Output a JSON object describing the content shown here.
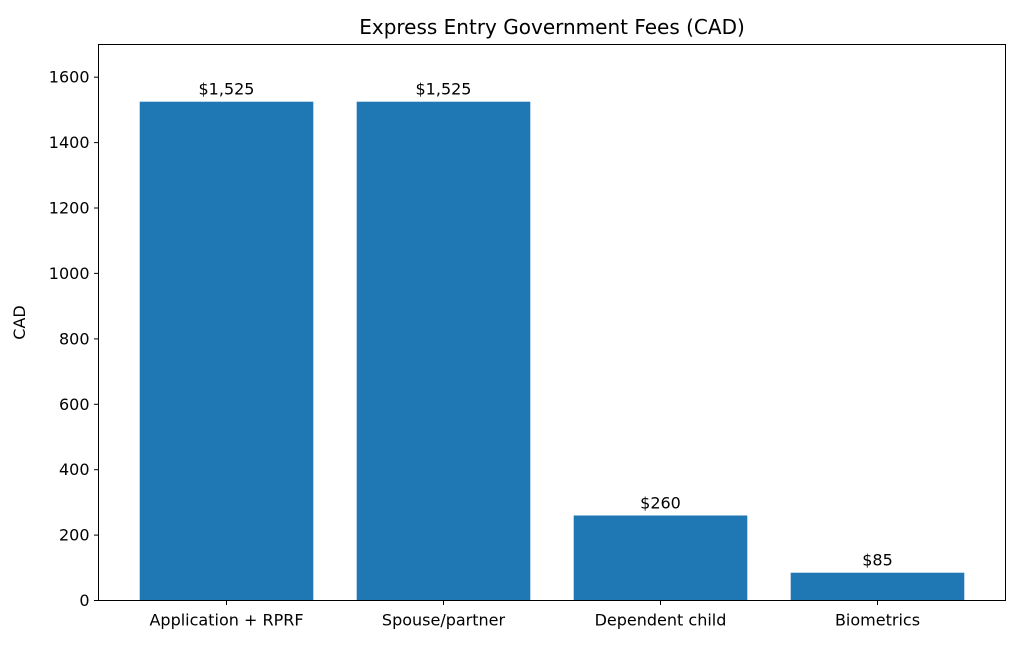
{
  "figure": {
    "background_color": "#ffffff",
    "text_color": "#000000",
    "axis_color": "#000000"
  },
  "chart_data": {
    "type": "bar",
    "title": "Express Entry Government Fees (CAD)",
    "xlabel": "",
    "ylabel": "CAD",
    "categories": [
      "Application + RPRF",
      "Spouse/partner",
      "Dependent child",
      "Biometrics"
    ],
    "values": [
      1525,
      1525,
      260,
      85
    ],
    "bar_labels": [
      "$1,525",
      "$1,525",
      "$260",
      "$85"
    ],
    "yticks": [
      0,
      200,
      400,
      600,
      800,
      1000,
      1200,
      1400,
      1600
    ],
    "ylim": [
      0,
      1700
    ],
    "xlim": [
      -0.59,
      3.59
    ],
    "bar_color": "#1f77b4",
    "grid": false,
    "legend_position": "none"
  }
}
